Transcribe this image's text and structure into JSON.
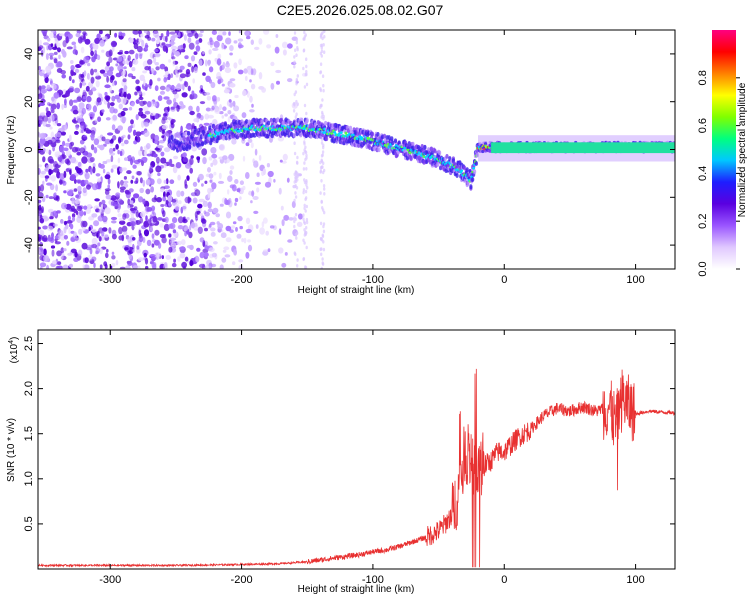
{
  "title": "C2E5.2026.025.08.02.G07",
  "spectrogram": {
    "xlabel": "Height of straight line (km)",
    "ylabel": "Frequency (Hz)",
    "xlim": [
      -355,
      130
    ],
    "ylim": [
      -50,
      50
    ],
    "xticks": [
      "-300",
      "-200",
      "-100",
      "0",
      "100"
    ],
    "xtick_values": [
      -300,
      -200,
      -100,
      0,
      100
    ],
    "yticks": [
      "-40",
      "-20",
      "0",
      "20",
      "40"
    ],
    "ytick_values": [
      -40,
      -20,
      0,
      20,
      40
    ],
    "colorbar": {
      "label": "Normalized spectral amplitude",
      "ticks": [
        "0.0",
        "0.2",
        "0.4",
        "0.6",
        "0.8"
      ],
      "tick_values": [
        0.0,
        0.2,
        0.4,
        0.6,
        0.8
      ],
      "range": [
        0,
        1
      ],
      "colors": [
        "#ffffff",
        "#e0c8ff",
        "#9a55ff",
        "#5a00e0",
        "#1e1eff",
        "#00c8ff",
        "#00ff80",
        "#80ff00",
        "#ffff00",
        "#ff8000",
        "#ff0000",
        "#ff0080"
      ]
    }
  },
  "chart_data": [
    {
      "type": "heatmap",
      "title": "C2E5.2026.025.08.02.G07",
      "xlabel": "Height of straight line (km)",
      "ylabel": "Frequency (Hz)",
      "xlim": [
        -355,
        130
      ],
      "ylim": [
        -50,
        50
      ],
      "ridge": {
        "x": [
          -250,
          -230,
          -210,
          -190,
          -170,
          -150,
          -130,
          -110,
          -90,
          -70,
          -50,
          -35,
          -25,
          -20,
          0,
          20,
          40,
          60,
          80,
          100,
          130
        ],
        "y": [
          3,
          5,
          8,
          9,
          9,
          9,
          7,
          5,
          2,
          -1,
          -4,
          -8,
          -13,
          1,
          1,
          1,
          1,
          1,
          1,
          1,
          1
        ]
      }
    },
    {
      "type": "line",
      "xlabel": "Height of straight line (km)",
      "ylabel": "SNR (10 * v/v)",
      "yscale_label": "(x10",
      "yscale_exp": "4",
      "yscale_suffix": ")",
      "xlim": [
        -355,
        130
      ],
      "ylim": [
        0,
        2.65
      ],
      "xticks": [
        "-300",
        "-200",
        "-100",
        "0",
        "100"
      ],
      "xtick_values": [
        -300,
        -200,
        -100,
        0,
        100
      ],
      "yticks": [
        "0.5",
        "1.0",
        "1.5",
        "2.0",
        "2.5"
      ],
      "ytick_values": [
        0.5,
        1.0,
        1.5,
        2.0,
        2.5
      ],
      "color": "#e83030",
      "series": [
        {
          "x": [
            -355,
            -300,
            -250,
            -200,
            -170,
            -150,
            -130,
            -110,
            -100,
            -90,
            -80,
            -70,
            -60,
            -50,
            -45,
            -40,
            -35,
            -30,
            -25,
            -20,
            -15,
            -10,
            -5,
            0,
            10,
            20,
            30,
            40,
            50,
            60,
            70,
            80,
            85,
            90,
            95,
            100,
            110,
            120,
            130
          ],
          "y": [
            0.04,
            0.04,
            0.04,
            0.05,
            0.06,
            0.08,
            0.12,
            0.16,
            0.19,
            0.21,
            0.25,
            0.3,
            0.35,
            0.42,
            0.5,
            0.6,
            0.85,
            1.3,
            1.2,
            1.1,
            1.15,
            1.2,
            1.3,
            1.3,
            1.45,
            1.55,
            1.7,
            1.78,
            1.75,
            1.8,
            1.75,
            1.8,
            1.6,
            1.9,
            1.8,
            1.72,
            1.75,
            1.74,
            1.73
          ]
        }
      ]
    }
  ]
}
